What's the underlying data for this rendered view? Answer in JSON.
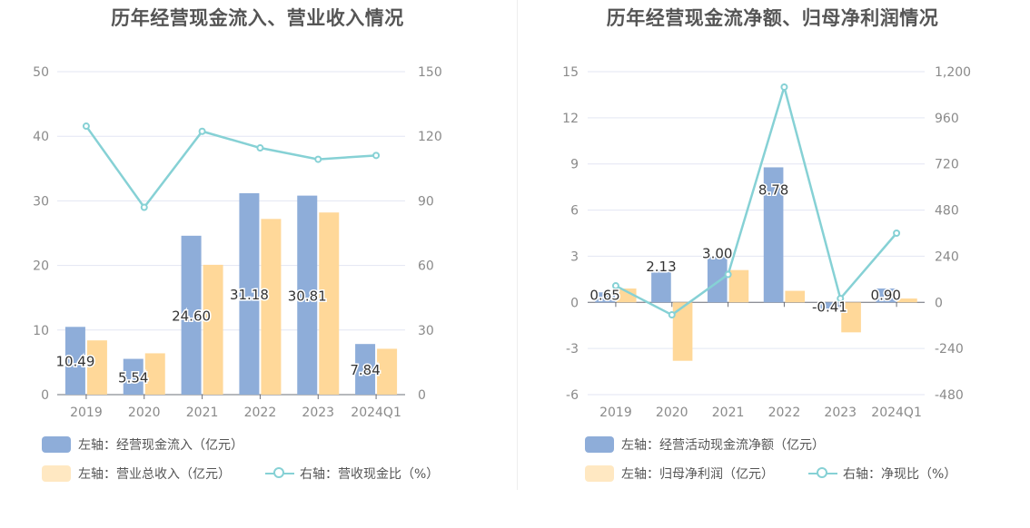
{
  "colors": {
    "bar_primary": "#8eadd9",
    "bar_secondary": "#ffd899",
    "line": "#86d1d5",
    "grid": "#e3e6f3",
    "axis_text": "#8a8a8a",
    "label_text": "#333333"
  },
  "chart_data": [
    {
      "type": "bar",
      "title": "历年经营现金流入、营业收入情况",
      "categories": [
        "2019",
        "2020",
        "2021",
        "2022",
        "2023",
        "2024Q1"
      ],
      "left_axis": {
        "ticks": [
          "0",
          "10",
          "20",
          "30",
          "40",
          "50"
        ],
        "ylim": [
          0,
          50
        ]
      },
      "right_axis": {
        "ticks": [
          "0",
          "30",
          "60",
          "90",
          "120",
          "150"
        ],
        "ylim": [
          0,
          150
        ]
      },
      "series": [
        {
          "name": "左轴：经营现金流入（亿元）",
          "type": "bar",
          "axis": "left",
          "values": [
            10.49,
            5.54,
            24.6,
            31.18,
            30.81,
            7.84
          ],
          "labels": [
            "10.49",
            "5.54",
            "24.60",
            "31.18",
            "30.81",
            "7.84"
          ]
        },
        {
          "name": "左轴：营业总收入（亿元）",
          "type": "bar",
          "axis": "left",
          "values": [
            8.4,
            6.4,
            20.1,
            27.2,
            28.2,
            7.1
          ]
        },
        {
          "name": "右轴：营收现金比（%）",
          "type": "line",
          "axis": "right",
          "values": [
            124.7,
            87.0,
            122.3,
            114.6,
            109.3,
            111.1
          ]
        }
      ],
      "legend_rows": [
        [
          "左轴：经营现金流入（亿元）"
        ],
        [
          "左轴：营业总收入（亿元）",
          "右轴：营收现金比（%）"
        ]
      ],
      "legend_placement": "bottom-left",
      "grid": true
    },
    {
      "type": "bar",
      "title": "历年经营现金流净额、归母净利润情况",
      "categories": [
        "2019",
        "2020",
        "2021",
        "2022",
        "2023",
        "2024Q1"
      ],
      "left_axis": {
        "ticks": [
          "-6",
          "-3",
          "0",
          "3",
          "6",
          "9",
          "12",
          "15"
        ],
        "ylim": [
          -6,
          15
        ]
      },
      "right_axis": {
        "ticks": [
          "-480",
          "-240",
          "0",
          "240",
          "480",
          "720",
          "960",
          "1,200"
        ],
        "ylim": [
          -480,
          1200
        ]
      },
      "series": [
        {
          "name": "左轴：经营活动现金流净额（亿元）",
          "type": "bar",
          "axis": "left",
          "values": [
            0.65,
            2.13,
            3.0,
            8.78,
            -0.41,
            0.9
          ],
          "labels": [
            "0.65",
            "2.13",
            "3.00",
            "8.78",
            "-0.41",
            "0.90"
          ]
        },
        {
          "name": "左轴：归母净利润（亿元）",
          "type": "bar",
          "axis": "left",
          "values": [
            0.9,
            -3.8,
            2.1,
            0.75,
            -1.95,
            0.25
          ]
        },
        {
          "name": "右轴：净现比（%）",
          "type": "line",
          "axis": "right",
          "values": [
            86,
            -65,
            145,
            1120,
            20,
            360
          ]
        }
      ],
      "legend_rows": [
        [
          "左轴：经营活动现金流净额（亿元）"
        ],
        [
          "左轴：归母净利润（亿元）",
          "右轴：净现比（%）"
        ]
      ],
      "legend_placement": "bottom-left",
      "grid": true
    }
  ]
}
